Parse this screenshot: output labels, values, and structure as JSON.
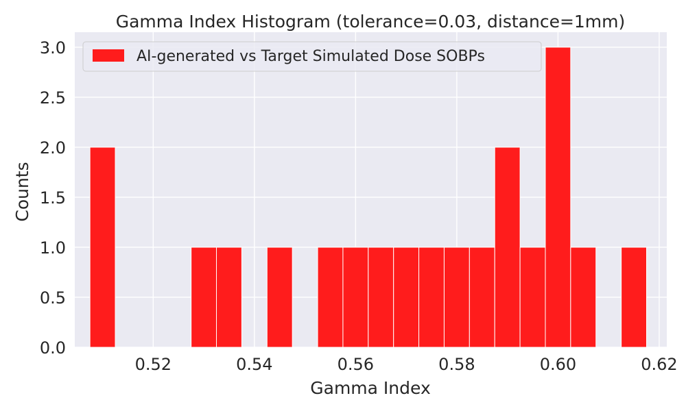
{
  "chart_data": {
    "type": "bar",
    "title": "Gamma Index Histogram (tolerance=0.03, distance=1mm)",
    "xlabel": "Gamma Index",
    "ylabel": "Counts",
    "xlim": [
      0.5045,
      0.6215
    ],
    "ylim": [
      0,
      3.15
    ],
    "xticks": [
      0.52,
      0.54,
      0.56,
      0.58,
      0.6,
      0.62
    ],
    "xtick_labels": [
      "0.52",
      "0.54",
      "0.56",
      "0.58",
      "0.60",
      "0.62"
    ],
    "yticks": [
      0.0,
      0.5,
      1.0,
      1.5,
      2.0,
      2.5,
      3.0
    ],
    "ytick_labels": [
      "0.0",
      "0.5",
      "1.0",
      "1.5",
      "2.0",
      "2.5",
      "3.0"
    ],
    "grid": true,
    "legend_position": "top-left",
    "series": [
      {
        "name": "AI-generated vs Target Simulated Dose SOBPs",
        "color": "#ff1c1c",
        "bins": [
          {
            "start": 0.5075,
            "end": 0.5125,
            "count": 2
          },
          {
            "start": 0.5125,
            "end": 0.5175,
            "count": 0
          },
          {
            "start": 0.5175,
            "end": 0.5225,
            "count": 0
          },
          {
            "start": 0.5225,
            "end": 0.5275,
            "count": 0
          },
          {
            "start": 0.5275,
            "end": 0.5325,
            "count": 1
          },
          {
            "start": 0.5325,
            "end": 0.5375,
            "count": 1
          },
          {
            "start": 0.5375,
            "end": 0.5425,
            "count": 0
          },
          {
            "start": 0.5425,
            "end": 0.5475,
            "count": 1
          },
          {
            "start": 0.5475,
            "end": 0.5525,
            "count": 0
          },
          {
            "start": 0.5525,
            "end": 0.5575,
            "count": 1
          },
          {
            "start": 0.5575,
            "end": 0.5625,
            "count": 1
          },
          {
            "start": 0.5625,
            "end": 0.5675,
            "count": 1
          },
          {
            "start": 0.5675,
            "end": 0.5725,
            "count": 1
          },
          {
            "start": 0.5725,
            "end": 0.5775,
            "count": 1
          },
          {
            "start": 0.5775,
            "end": 0.5825,
            "count": 1
          },
          {
            "start": 0.5825,
            "end": 0.5875,
            "count": 1
          },
          {
            "start": 0.5875,
            "end": 0.5925,
            "count": 2
          },
          {
            "start": 0.5925,
            "end": 0.5975,
            "count": 1
          },
          {
            "start": 0.5975,
            "end": 0.6025,
            "count": 3
          },
          {
            "start": 0.6025,
            "end": 0.6075,
            "count": 1
          },
          {
            "start": 0.6075,
            "end": 0.6125,
            "count": 0
          },
          {
            "start": 0.6125,
            "end": 0.6175,
            "count": 1
          }
        ]
      }
    ]
  },
  "colors": {
    "plot_background": "#eaeaf2",
    "grid": "#ffffff",
    "bar": "#ff1c1c",
    "bar_edge": "#ffffff",
    "text": "#262626"
  }
}
